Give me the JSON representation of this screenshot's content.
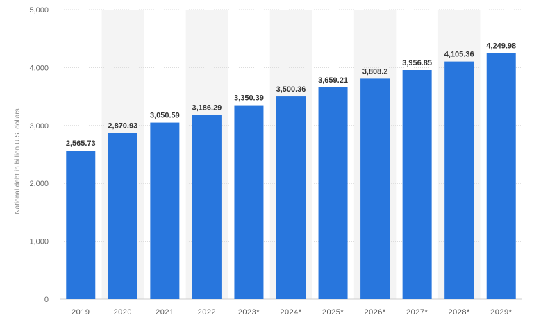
{
  "chart_data": {
    "type": "bar",
    "categories": [
      "2019",
      "2020",
      "2021",
      "2022",
      "2023*",
      "2024*",
      "2025*",
      "2026*",
      "2027*",
      "2028*",
      "2029*"
    ],
    "values": [
      2565.73,
      2870.93,
      3050.59,
      3186.29,
      3350.39,
      3500.36,
      3659.21,
      3808.2,
      3956.85,
      4105.36,
      4249.98
    ],
    "data_labels": [
      "2,565.73",
      "2,870.93",
      "3,050.59",
      "3,186.29",
      "3,350.39",
      "3,500.36",
      "3,659.21",
      "3,808.2",
      "3,956.85",
      "4,105.36",
      "4,249.98"
    ],
    "ylabel": "National debt in billion U.S. dollars",
    "ylim": [
      0,
      5000
    ],
    "yticks": [
      0,
      1000,
      2000,
      3000,
      4000,
      5000
    ],
    "ytick_labels": [
      "0",
      "1,000",
      "2,000",
      "3,000",
      "4,000",
      "5,000"
    ],
    "grid": true,
    "bar_color": "#2876dd",
    "band_color": "#f4f4f4",
    "grid_color": "#d8d8d8"
  }
}
